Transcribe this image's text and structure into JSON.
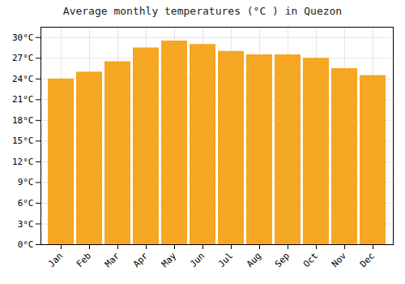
{
  "chart_data": {
    "type": "bar",
    "title": "Average monthly temperatures (°C ) in Quezon",
    "categories": [
      "Jan",
      "Feb",
      "Mar",
      "Apr",
      "May",
      "Jun",
      "Jul",
      "Aug",
      "Sep",
      "Oct",
      "Nov",
      "Dec"
    ],
    "values": [
      24.0,
      25.0,
      26.5,
      28.5,
      29.5,
      29.0,
      28.0,
      27.5,
      27.5,
      27.0,
      25.5,
      24.5
    ],
    "color": "#F5A623",
    "ylim": [
      0,
      31.5
    ],
    "yticks": [
      {
        "value": 0,
        "label": "0°C"
      },
      {
        "value": 3,
        "label": "3°C"
      },
      {
        "value": 6,
        "label": "6°C"
      },
      {
        "value": 9,
        "label": "9°C"
      },
      {
        "value": 12,
        "label": "12°C"
      },
      {
        "value": 15,
        "label": "15°C"
      },
      {
        "value": 18,
        "label": "18°C"
      },
      {
        "value": 21,
        "label": "21°C"
      },
      {
        "value": 24,
        "label": "24°C"
      },
      {
        "value": 27,
        "label": "27°C"
      },
      {
        "value": 30,
        "label": "30°C"
      }
    ],
    "grid": true
  }
}
